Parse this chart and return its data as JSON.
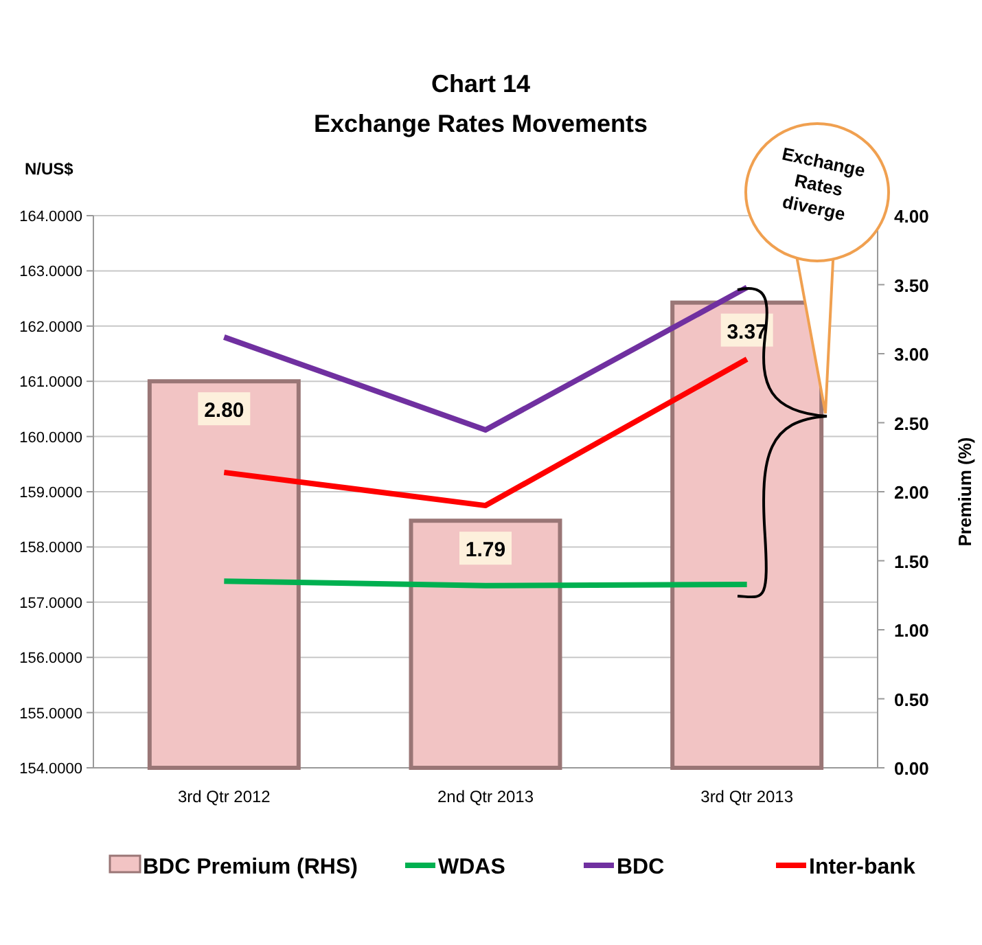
{
  "chart_data": {
    "type": "line",
    "title": "Chart 14",
    "subtitle": "Exchange Rates Movements",
    "ylabel": "N/US$",
    "y2label": "Premium (%)",
    "categories": [
      "3rd Qtr 2012",
      "2nd Qtr 2013",
      "3rd Qtr 2013"
    ],
    "series": [
      {
        "name": "BDC Premium (RHS)",
        "type": "bar",
        "axis": "y2",
        "color": "#f2c4c4",
        "values": [
          2.8,
          1.79,
          3.37
        ],
        "value_labels": [
          "2.80",
          "1.79",
          "3.37"
        ]
      },
      {
        "name": "WDAS",
        "color": "#00b050",
        "values": [
          157.38,
          157.3,
          157.32
        ]
      },
      {
        "name": "BDC",
        "color": "#7030a0",
        "values": [
          161.8,
          160.12,
          162.7
        ]
      },
      {
        "name": "Inter-bank",
        "color": "#ff0000",
        "values": [
          159.35,
          158.75,
          161.4
        ]
      }
    ],
    "ylim": [
      154,
      164
    ],
    "yticks": [
      {
        "value": 154,
        "label": "154.0000"
      },
      {
        "value": 155,
        "label": "155.0000"
      },
      {
        "value": 156,
        "label": "156.0000"
      },
      {
        "value": 157,
        "label": "157.0000"
      },
      {
        "value": 158,
        "label": "158.0000"
      },
      {
        "value": 159,
        "label": "159.0000"
      },
      {
        "value": 160,
        "label": "160.0000"
      },
      {
        "value": 161,
        "label": "161.0000"
      },
      {
        "value": 162,
        "label": "162.0000"
      },
      {
        "value": 163,
        "label": "163.0000"
      },
      {
        "value": 164,
        "label": "164.0000"
      }
    ],
    "y2lim": [
      0,
      4
    ],
    "y2ticks": [
      {
        "value": 0,
        "label": "0.00"
      },
      {
        "value": 0.5,
        "label": "0.50"
      },
      {
        "value": 1,
        "label": "1.00"
      },
      {
        "value": 1.5,
        "label": "1.50"
      },
      {
        "value": 2,
        "label": "2.00"
      },
      {
        "value": 2.5,
        "label": "2.50"
      },
      {
        "value": 3,
        "label": "3.00"
      },
      {
        "value": 3.5,
        "label": "3.50"
      },
      {
        "value": 4,
        "label": "4.00"
      }
    ],
    "grid": "y",
    "legend": "bottom",
    "marker": "none",
    "line_style": "solid",
    "annotations": [
      "Exchange Rates diverge"
    ]
  }
}
